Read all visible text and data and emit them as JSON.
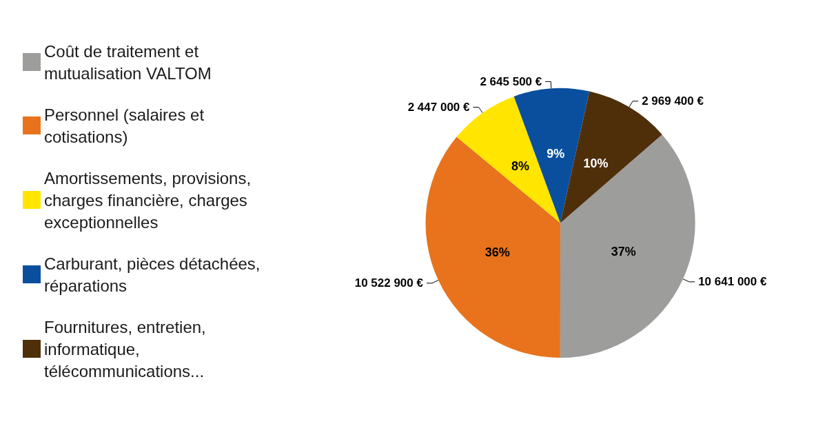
{
  "chart_data": {
    "type": "pie",
    "categories": [
      "Coût de traitement et mutualisation VALTOM",
      "Personnel (salaires et cotisations)",
      "Amortissements, provisions, charges financière, charges exceptionnelles",
      "Carburant, pièces détachées, réparations",
      "Fournitures, entretien, informatique, télécommunications..."
    ],
    "values": [
      10641000,
      10522900,
      2447000,
      2645500,
      2969400
    ],
    "colors": [
      "#9d9d9c",
      "#e8731c",
      "#ffe500",
      "#0a4f9e",
      "#4f2f0a"
    ],
    "value_labels": [
      "10 641 000 €",
      "10 522 900 €",
      "2 447 000 €",
      "2 645 500 €",
      "2 969 400 €"
    ],
    "annotations": [
      "37%",
      "36%",
      "8%",
      "9%",
      "10%"
    ],
    "legend": "left"
  }
}
